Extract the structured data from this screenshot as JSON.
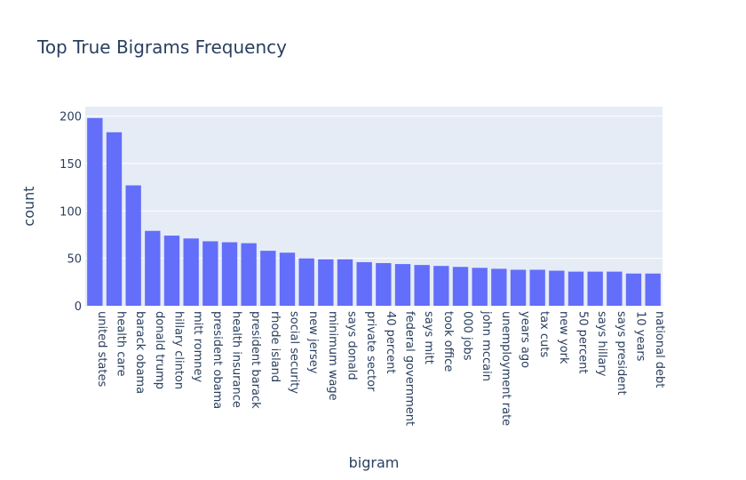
{
  "chart_data": {
    "type": "bar",
    "title": "Top True Bigrams Frequency",
    "xlabel": "bigram",
    "ylabel": "count",
    "categories": [
      "united states",
      "health care",
      "barack obama",
      "donald trump",
      "hillary clinton",
      "mitt romney",
      "president obama",
      "health insurance",
      "president barack",
      "rhode island",
      "social security",
      "new jersey",
      "minimum wage",
      "says donald",
      "private sector",
      "40 percent",
      "federal government",
      "says mitt",
      "took office",
      "000 jobs",
      "john mccain",
      "unemployment rate",
      "years ago",
      "tax cuts",
      "new york",
      "50 percent",
      "says hillary",
      "says president",
      "10 years",
      "national debt"
    ],
    "values": [
      198,
      183,
      127,
      79,
      74,
      71,
      68,
      67,
      66,
      58,
      56,
      50,
      49,
      49,
      46,
      45,
      44,
      43,
      42,
      41,
      40,
      39,
      38,
      38,
      37,
      36,
      36,
      36,
      34,
      34
    ],
    "ylim": [
      0,
      210
    ],
    "yticks": [
      0,
      50,
      100,
      150,
      200
    ],
    "grid": true,
    "legend": "none",
    "colors": {
      "bar": "#636efa",
      "plot_bg": "#e5ecf6",
      "grid": "#ffffff",
      "text": "#2a3f5f"
    }
  }
}
